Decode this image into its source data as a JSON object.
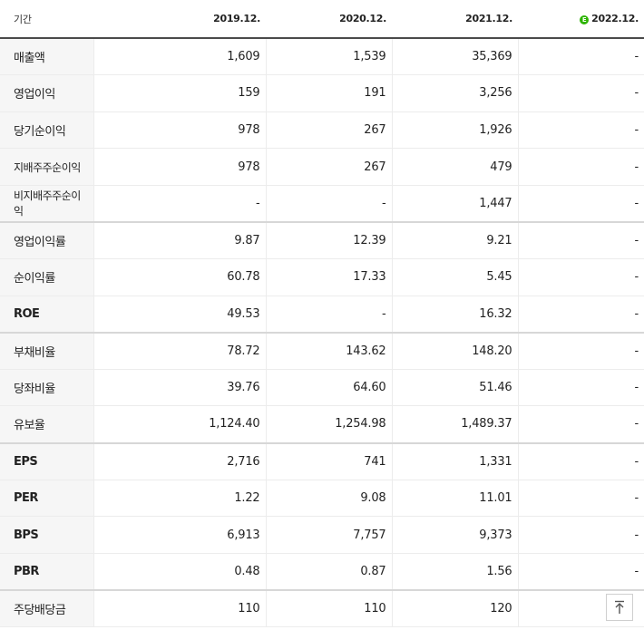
{
  "header": {
    "label": "기간",
    "periods": [
      "2019.12.",
      "2020.12.",
      "2021.12.",
      "2022.12."
    ],
    "estimate_badge": "E",
    "estimate_color": "#2db400"
  },
  "rows": [
    {
      "label": "매출액",
      "values": [
        "1,609",
        "1,539",
        "35,369",
        "-"
      ]
    },
    {
      "label": "영업이익",
      "values": [
        "159",
        "191",
        "3,256",
        "-"
      ]
    },
    {
      "label": "당기순이익",
      "values": [
        "978",
        "267",
        "1,926",
        "-"
      ]
    },
    {
      "label": "지배주주순이익",
      "values": [
        "978",
        "267",
        "479",
        "-"
      ]
    },
    {
      "label": "비지배주주순이익",
      "values": [
        "-",
        "-",
        "1,447",
        "-"
      ]
    },
    {
      "label": "영업이익률",
      "values": [
        "9.87",
        "12.39",
        "9.21",
        "-"
      ]
    },
    {
      "label": "순이익률",
      "values": [
        "60.78",
        "17.33",
        "5.45",
        "-"
      ]
    },
    {
      "label": "ROE",
      "values": [
        "49.53",
        "-",
        "16.32",
        "-"
      ]
    },
    {
      "label": "부채비율",
      "values": [
        "78.72",
        "143.62",
        "148.20",
        "-"
      ]
    },
    {
      "label": "당좌비율",
      "values": [
        "39.76",
        "64.60",
        "51.46",
        "-"
      ]
    },
    {
      "label": "유보율",
      "values": [
        "1,124.40",
        "1,254.98",
        "1,489.37",
        "-"
      ]
    },
    {
      "label": "EPS",
      "values": [
        "2,716",
        "741",
        "1,331",
        "-"
      ]
    },
    {
      "label": "PER",
      "values": [
        "1.22",
        "9.08",
        "11.01",
        "-"
      ]
    },
    {
      "label": "BPS",
      "values": [
        "6,913",
        "7,757",
        "9,373",
        "-"
      ]
    },
    {
      "label": "PBR",
      "values": [
        "0.48",
        "0.87",
        "1.56",
        "-"
      ]
    },
    {
      "label": "주당배당금",
      "values": [
        "110",
        "110",
        "120",
        ""
      ]
    }
  ],
  "scroll_top_icon": "arrow-up-to-top-icon"
}
